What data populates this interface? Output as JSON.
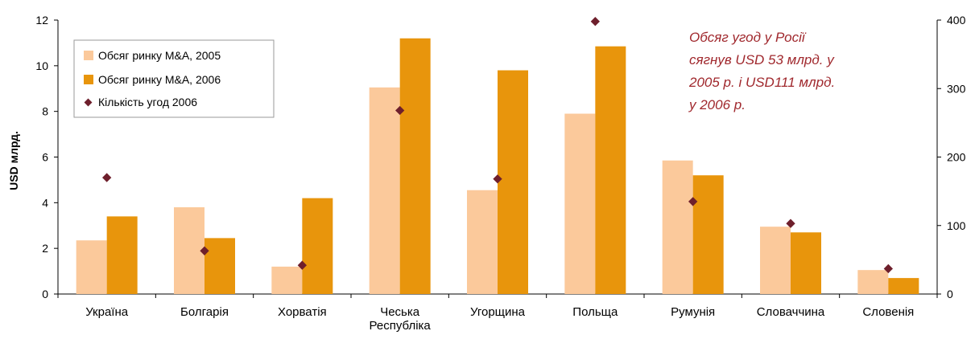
{
  "chart_data": {
    "type": "bar",
    "categories": [
      [
        "Україна"
      ],
      [
        "Болгарія"
      ],
      [
        "Хорватія"
      ],
      [
        "Чеська",
        "Республіка"
      ],
      [
        "Угорщина"
      ],
      [
        "Польща"
      ],
      [
        "Румунія"
      ],
      [
        "Словаччина"
      ],
      [
        "Словенія"
      ]
    ],
    "series": [
      {
        "name": "Обсяг ринку M&A, 2005",
        "type": "bar",
        "axis": "left",
        "color": "#fbc99b",
        "values": [
          2.35,
          3.8,
          1.2,
          9.05,
          4.55,
          7.9,
          5.85,
          2.95,
          1.05
        ]
      },
      {
        "name": "Обсяг ринку M&A, 2006",
        "type": "bar",
        "axis": "left",
        "color": "#e8950c",
        "values": [
          3.4,
          2.45,
          4.2,
          11.2,
          9.8,
          10.85,
          5.2,
          2.7,
          0.7
        ]
      },
      {
        "name": "Кількість угод 2006",
        "type": "scatter",
        "axis": "right",
        "color": "#6e1f2c",
        "values": [
          170,
          63,
          42,
          268,
          168,
          398,
          135,
          103,
          37
        ]
      }
    ],
    "ylabel": "USD млрд.",
    "ylim": [
      0,
      12
    ],
    "yticks": [
      "0",
      "2",
      "4",
      "6",
      "8",
      "10",
      "12"
    ],
    "y2lim": [
      0,
      400
    ],
    "y2ticks": [
      "0",
      "100",
      "200",
      "300",
      "400"
    ],
    "legend_position": "top-left",
    "annotation": [
      "Обсяг угод у Росії",
      "сягнув USD 53 млрд. у",
      "2005 р. і  USD111 млрд.",
      "у 2006 р."
    ]
  }
}
